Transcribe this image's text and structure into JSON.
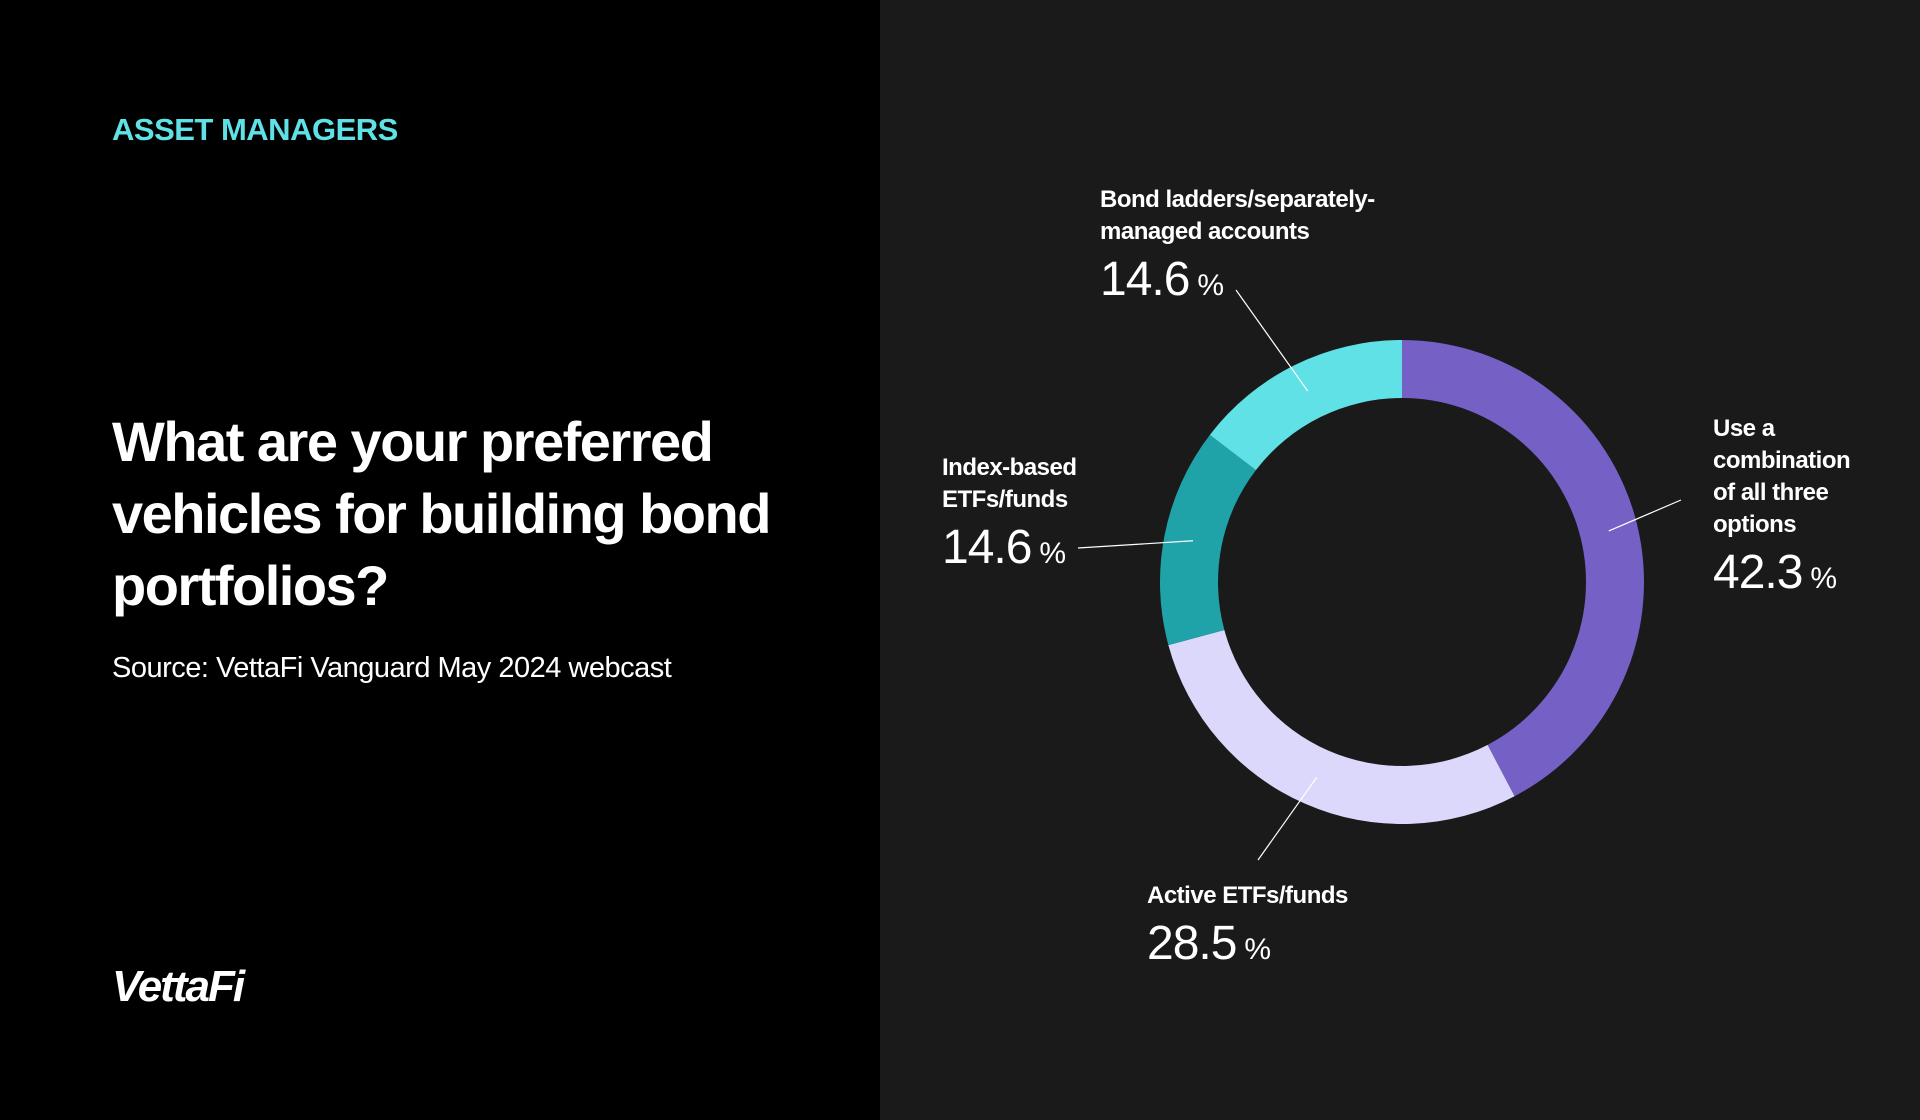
{
  "header": {
    "kicker": "ASSET MANAGERS"
  },
  "question": "What are your preferred vehicles for building bond portfolios?",
  "source": "Source: VettaFi Vanguard May 2024 webcast",
  "brand": {
    "logo_text": "VettaFi"
  },
  "colors": {
    "accent": "#5fe1e6",
    "background_left": "#000000",
    "background_right": "#1a1a1a"
  },
  "chart_data": {
    "type": "pie",
    "variant": "donut",
    "unit": "%",
    "categories": [
      "Use a combination of all three options",
      "Active ETFs/funds",
      "Index-based ETFs/funds",
      "Bond ladders/separately-managed accounts"
    ],
    "values": [
      42.3,
      28.5,
      14.6,
      14.6
    ],
    "value_labels": [
      "42.3",
      "28.5",
      "14.6",
      "14.6"
    ],
    "label_lines": [
      [
        "Use a",
        "combination",
        "of all three",
        "options"
      ],
      [
        "Active ETFs/funds"
      ],
      [
        "Index-based",
        "ETFs/funds"
      ],
      [
        "Bond ladders/separately-",
        "managed accounts"
      ]
    ],
    "colors": [
      "#7560c6",
      "#dcd8fb",
      "#1fa3a8",
      "#5fe1e6"
    ]
  }
}
